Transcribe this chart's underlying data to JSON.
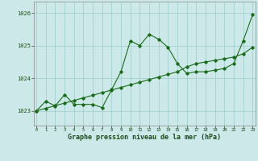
{
  "x": [
    0,
    1,
    2,
    3,
    4,
    5,
    6,
    7,
    8,
    9,
    10,
    11,
    12,
    13,
    14,
    15,
    16,
    17,
    18,
    19,
    20,
    21,
    22,
    23
  ],
  "y_main": [
    1023.0,
    1023.3,
    1023.15,
    1023.5,
    1023.2,
    1023.2,
    1023.2,
    1023.1,
    1023.65,
    1024.2,
    1025.15,
    1025.0,
    1025.35,
    1025.2,
    1024.95,
    1024.45,
    1024.15,
    1024.2,
    1024.2,
    1024.25,
    1024.3,
    1024.45,
    1025.15,
    1025.95
  ],
  "y_trend": [
    1023.0,
    1023.08,
    1023.16,
    1023.24,
    1023.32,
    1023.4,
    1023.48,
    1023.56,
    1023.64,
    1023.72,
    1023.8,
    1023.88,
    1023.96,
    1024.04,
    1024.12,
    1024.2,
    1024.35,
    1024.45,
    1024.5,
    1024.55,
    1024.6,
    1024.65,
    1024.75,
    1024.95
  ],
  "line_color": "#1a6b1a",
  "bg_color": "#cce8e8",
  "grid_color": "#99cccc",
  "xlabel": "Graphe pression niveau de la mer (hPa)",
  "ylim": [
    1022.55,
    1026.35
  ],
  "yticks": [
    1023,
    1024,
    1025,
    1026
  ],
  "xticks": [
    0,
    1,
    2,
    3,
    4,
    5,
    6,
    7,
    8,
    9,
    10,
    11,
    12,
    13,
    14,
    15,
    16,
    17,
    18,
    19,
    20,
    21,
    22,
    23
  ]
}
